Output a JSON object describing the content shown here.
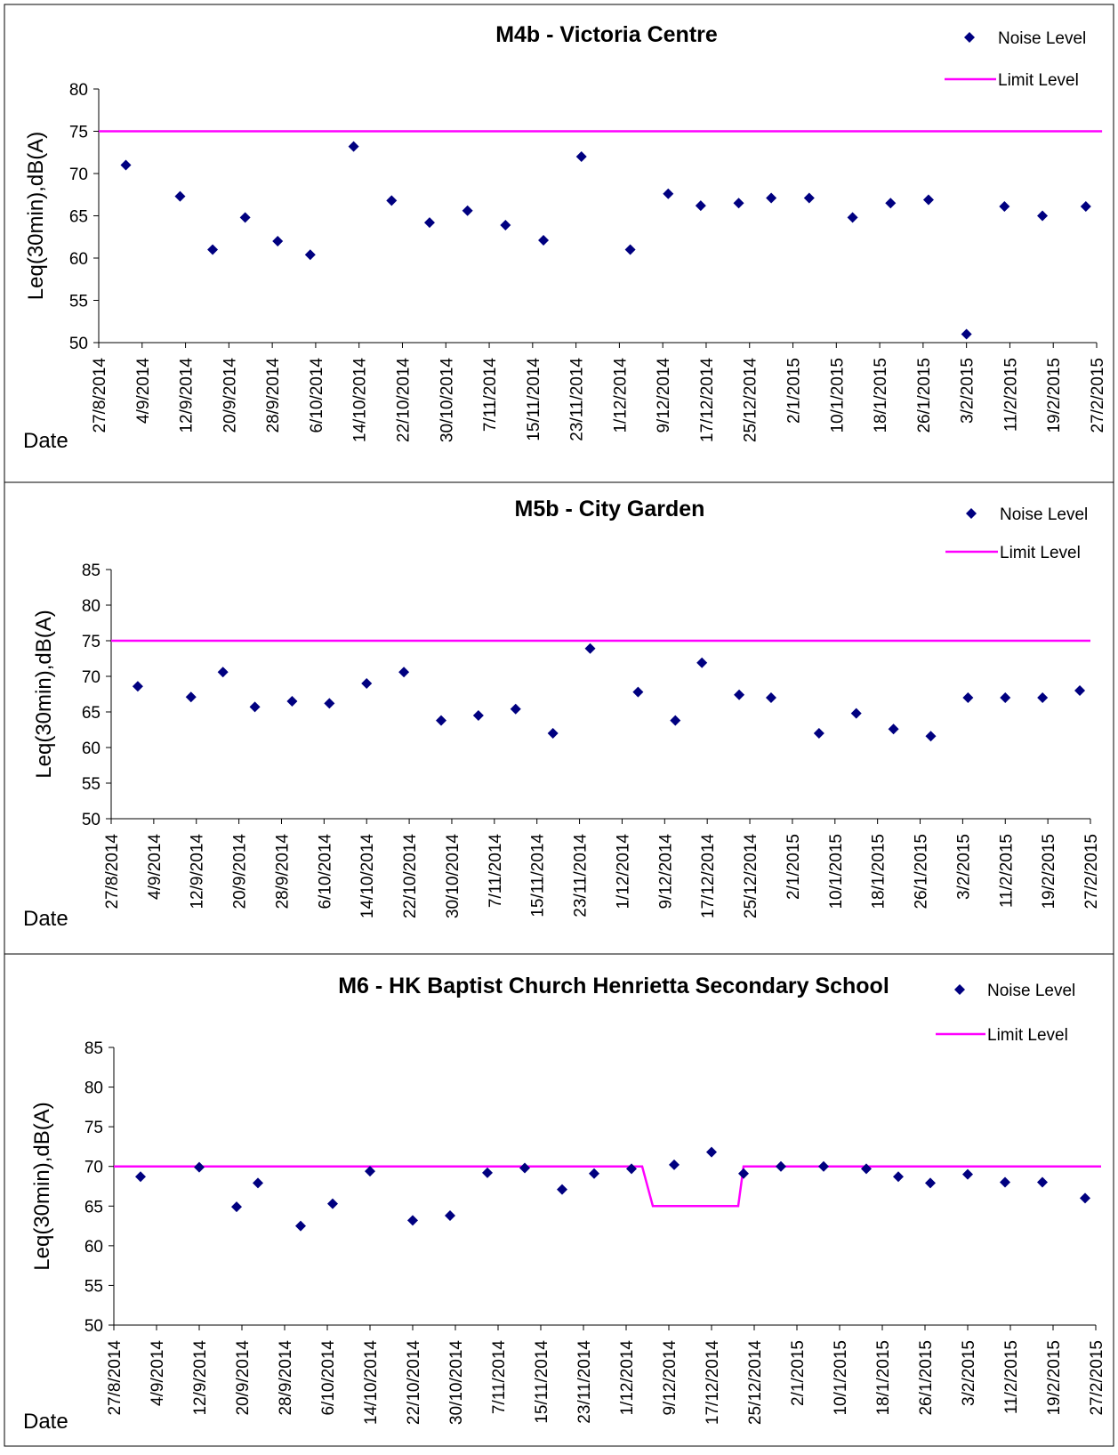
{
  "charts": [
    {
      "title": "M4b - Victoria Centre",
      "ylabel": "Leq(30min),dB(A)",
      "xlabel": "Date",
      "legend": {
        "noise": "Noise Level",
        "limit": "Limit Level"
      }
    },
    {
      "title": "M5b - City Garden",
      "ylabel": "Leq(30min),dB(A)",
      "xlabel": "Date",
      "legend": {
        "noise": "Noise Level",
        "limit": "Limit Level"
      }
    },
    {
      "title": "M6 - HK Baptist Church Henrietta Secondary School",
      "ylabel": "Leq(30min),dB(A)",
      "xlabel": "Date",
      "legend": {
        "noise": "Noise Level",
        "limit": "Limit Level"
      }
    }
  ],
  "colors": {
    "noise": "#000080",
    "limit": "#ff00ff"
  },
  "chart_data": [
    {
      "type": "scatter",
      "title": "M4b - Victoria Centre",
      "xlabel": "Date",
      "ylabel": "Leq(30min),dB(A)",
      "x_ticks": [
        "27/8/2014",
        "4/9/2014",
        "12/9/2014",
        "20/9/2014",
        "28/9/2014",
        "6/10/2014",
        "14/10/2014",
        "22/10/2014",
        "30/10/2014",
        "7/11/2014",
        "15/11/2014",
        "23/11/2014",
        "1/12/2014",
        "9/12/2014",
        "17/12/2014",
        "25/12/2014",
        "2/1/2015",
        "10/1/2015",
        "18/1/2015",
        "26/1/2015",
        "3/2/2015",
        "11/2/2015",
        "19/2/2015",
        "27/2/2015"
      ],
      "y_ticks": [
        50,
        55,
        60,
        65,
        70,
        75,
        80
      ],
      "ylim": [
        50,
        80
      ],
      "xlim": [
        "2014-08-27",
        "2015-02-27"
      ],
      "grid": false,
      "legend_position": "top-right",
      "series": [
        {
          "name": "Noise Level",
          "kind": "markers",
          "points": [
            [
              "2014-09-01",
              71.0
            ],
            [
              "2014-09-11",
              67.3
            ],
            [
              "2014-09-17",
              61.0
            ],
            [
              "2014-09-23",
              64.8
            ],
            [
              "2014-09-29",
              62.0
            ],
            [
              "2014-10-05",
              60.4
            ],
            [
              "2014-10-13",
              73.2
            ],
            [
              "2014-10-20",
              66.8
            ],
            [
              "2014-10-27",
              64.2
            ],
            [
              "2014-11-03",
              65.6
            ],
            [
              "2014-11-10",
              63.9
            ],
            [
              "2014-11-17",
              62.1
            ],
            [
              "2014-11-24",
              72.0
            ],
            [
              "2014-12-03",
              61.0
            ],
            [
              "2014-12-10",
              67.6
            ],
            [
              "2014-12-16",
              66.2
            ],
            [
              "2014-12-23",
              66.5
            ],
            [
              "2014-12-29",
              67.1
            ],
            [
              "2015-01-05",
              67.1
            ],
            [
              "2015-01-13",
              64.8
            ],
            [
              "2015-01-20",
              66.5
            ],
            [
              "2015-01-27",
              66.9
            ],
            [
              "2015-02-03",
              51.0
            ],
            [
              "2015-02-10",
              66.1
            ],
            [
              "2015-02-17",
              65.0
            ],
            [
              "2015-02-25",
              66.1
            ]
          ]
        },
        {
          "name": "Limit Level",
          "kind": "line",
          "points": [
            [
              "2014-08-27",
              75
            ],
            [
              "2015-02-28",
              75
            ]
          ]
        }
      ]
    },
    {
      "type": "scatter",
      "title": "M5b - City Garden",
      "xlabel": "Date",
      "ylabel": "Leq(30min),dB(A)",
      "x_ticks": [
        "27/8/2014",
        "4/9/2014",
        "12/9/2014",
        "20/9/2014",
        "28/9/2014",
        "6/10/2014",
        "14/10/2014",
        "22/10/2014",
        "30/10/2014",
        "7/11/2014",
        "15/11/2014",
        "23/11/2014",
        "1/12/2014",
        "9/12/2014",
        "17/12/2014",
        "25/12/2014",
        "2/1/2015",
        "10/1/2015",
        "18/1/2015",
        "26/1/2015",
        "3/2/2015",
        "11/2/2015",
        "19/2/2015",
        "27/2/2015"
      ],
      "y_ticks": [
        50,
        55,
        60,
        65,
        70,
        75,
        80,
        85
      ],
      "ylim": [
        50,
        85
      ],
      "xlim": [
        "2014-08-27",
        "2015-02-27"
      ],
      "grid": false,
      "legend_position": "top-right",
      "series": [
        {
          "name": "Noise Level",
          "kind": "markers",
          "points": [
            [
              "2014-09-01",
              68.6
            ],
            [
              "2014-09-11",
              67.1
            ],
            [
              "2014-09-17",
              70.6
            ],
            [
              "2014-09-23",
              65.7
            ],
            [
              "2014-09-30",
              66.5
            ],
            [
              "2014-10-07",
              66.2
            ],
            [
              "2014-10-14",
              69.0
            ],
            [
              "2014-10-21",
              70.6
            ],
            [
              "2014-10-28",
              63.8
            ],
            [
              "2014-11-04",
              64.5
            ],
            [
              "2014-11-11",
              65.4
            ],
            [
              "2014-11-18",
              62.0
            ],
            [
              "2014-11-25",
              73.9
            ],
            [
              "2014-12-04",
              67.8
            ],
            [
              "2014-12-11",
              63.8
            ],
            [
              "2014-12-16",
              71.9
            ],
            [
              "2014-12-23",
              67.4
            ],
            [
              "2014-12-29",
              67.0
            ],
            [
              "2015-01-07",
              62.0
            ],
            [
              "2015-01-14",
              64.8
            ],
            [
              "2015-01-21",
              62.6
            ],
            [
              "2015-01-28",
              61.6
            ],
            [
              "2015-02-04",
              67.0
            ],
            [
              "2015-02-11",
              67.0
            ],
            [
              "2015-02-18",
              67.0
            ],
            [
              "2015-02-25",
              68.0
            ]
          ]
        },
        {
          "name": "Limit Level",
          "kind": "line",
          "points": [
            [
              "2014-08-27",
              75
            ],
            [
              "2015-02-27",
              75
            ]
          ]
        }
      ]
    },
    {
      "type": "scatter",
      "title": "M6 - HK Baptist Church Henrietta Secondary School",
      "xlabel": "Date",
      "ylabel": "Leq(30min),dB(A)",
      "x_ticks": [
        "27/8/2014",
        "4/9/2014",
        "12/9/2014",
        "20/9/2014",
        "28/9/2014",
        "6/10/2014",
        "14/10/2014",
        "22/10/2014",
        "30/10/2014",
        "7/11/2014",
        "15/11/2014",
        "23/11/2014",
        "1/12/2014",
        "9/12/2014",
        "17/12/2014",
        "25/12/2014",
        "2/1/2015",
        "10/1/2015",
        "18/1/2015",
        "26/1/2015",
        "3/2/2015",
        "11/2/2015",
        "19/2/2015",
        "27/2/2015"
      ],
      "y_ticks": [
        50,
        55,
        60,
        65,
        70,
        75,
        80,
        85
      ],
      "ylim": [
        50,
        85
      ],
      "xlim": [
        "2014-08-27",
        "2015-02-27"
      ],
      "grid": false,
      "legend_position": "top-right",
      "series": [
        {
          "name": "Noise Level",
          "kind": "markers",
          "points": [
            [
              "2014-09-01",
              68.7
            ],
            [
              "2014-09-12",
              69.9
            ],
            [
              "2014-09-19",
              64.9
            ],
            [
              "2014-09-23",
              67.9
            ],
            [
              "2014-10-01",
              62.5
            ],
            [
              "2014-10-07",
              65.3
            ],
            [
              "2014-10-14",
              69.4
            ],
            [
              "2014-10-22",
              63.2
            ],
            [
              "2014-10-29",
              63.8
            ],
            [
              "2014-11-05",
              69.2
            ],
            [
              "2014-11-12",
              69.8
            ],
            [
              "2014-11-19",
              67.1
            ],
            [
              "2014-11-25",
              69.1
            ],
            [
              "2014-12-02",
              69.7
            ],
            [
              "2014-12-10",
              70.2
            ],
            [
              "2014-12-17",
              71.8
            ],
            [
              "2014-12-23",
              69.1
            ],
            [
              "2014-12-30",
              70.0
            ],
            [
              "2015-01-07",
              70.0
            ],
            [
              "2015-01-15",
              69.7
            ],
            [
              "2015-01-21",
              68.7
            ],
            [
              "2015-01-27",
              67.9
            ],
            [
              "2015-02-03",
              69.0
            ],
            [
              "2015-02-10",
              68.0
            ],
            [
              "2015-02-17",
              68.0
            ],
            [
              "2015-02-25",
              66.0
            ]
          ]
        },
        {
          "name": "Limit Level",
          "kind": "line",
          "points": [
            [
              "2014-08-27",
              70
            ],
            [
              "2014-12-04",
              70
            ],
            [
              "2014-12-06",
              65
            ],
            [
              "2014-12-22",
              65
            ],
            [
              "2014-12-23",
              70
            ],
            [
              "2015-02-28",
              70
            ]
          ]
        }
      ]
    }
  ]
}
